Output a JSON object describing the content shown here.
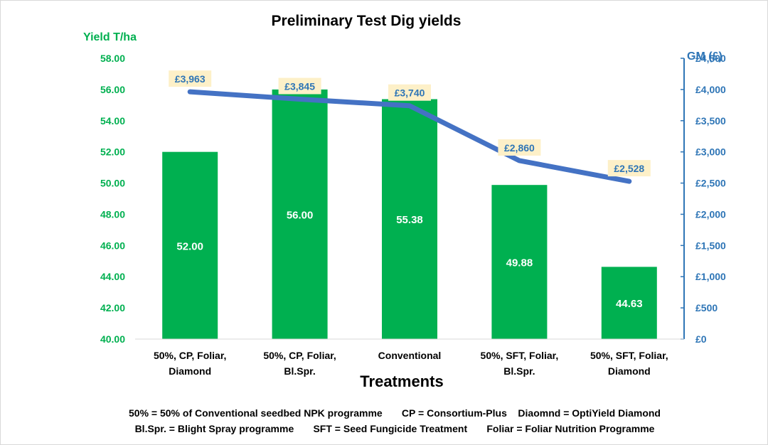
{
  "chart_data": {
    "type": "bar",
    "title": "Preliminary Test Dig yields",
    "xlabel": "Treatments",
    "ylabel": "Yield T/ha",
    "ylabel_right": "GM (£)",
    "categories": [
      [
        "50%, CP, Foliar,",
        "Diamond"
      ],
      [
        "50%, CP, Foliar,",
        "Bl.Spr."
      ],
      [
        "Conventional"
      ],
      [
        "50%, SFT, Foliar,",
        "Bl.Spr."
      ],
      [
        "50%, SFT, Foliar,",
        "Diamond"
      ]
    ],
    "series": [
      {
        "name": "Yield T/ha",
        "type": "bar",
        "axis": "left",
        "color": "#00b050",
        "values": [
          52.0,
          56.0,
          55.38,
          49.88,
          44.63
        ],
        "labels": [
          "52.00",
          "56.00",
          "55.38",
          "49.88",
          "44.63"
        ]
      },
      {
        "name": "GM (£)",
        "type": "line",
        "axis": "right",
        "color": "#4472c4",
        "values": [
          3963,
          3845,
          3740,
          2860,
          2528
        ],
        "labels": [
          "£3,963",
          "£3,845",
          "£3,740",
          "£2,860",
          "£2,528"
        ]
      }
    ],
    "ylim": [
      40,
      58
    ],
    "yticks": [
      "40.00",
      "42.00",
      "44.00",
      "46.00",
      "48.00",
      "50.00",
      "52.00",
      "54.00",
      "56.00",
      "58.00"
    ],
    "ylim_right": [
      0,
      4500
    ],
    "yticks_right": [
      "£0",
      "£500",
      "£1,000",
      "£1,500",
      "£2,000",
      "£2,500",
      "£3,000",
      "£3,500",
      "£4,000",
      "£4,500"
    ],
    "grid": false,
    "legend": "none"
  },
  "footnotes": [
    "50% = 50% of Conventional seedbed NPK programme       CP = Consortium-Plus    Diaomnd = OptiYield Diamond",
    "Bl.Spr. = Blight Spray programme       SFT = Seed Fungicide Treatment       Foliar = Foliar Nutrition Programme"
  ]
}
